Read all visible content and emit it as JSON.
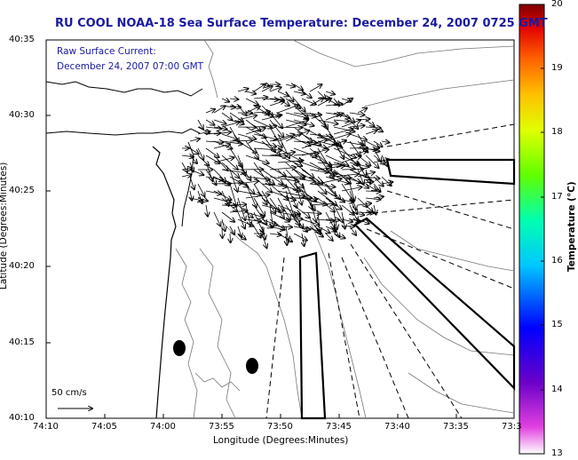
{
  "title": "RU COOL  NOAA-18  Sea Surface Temperature:  December 24, 2007 0725 GMT",
  "legend_note": {
    "line1": "Raw Surface Current:",
    "line2": "December 24, 2007 07:00 GMT"
  },
  "axes": {
    "xlabel": "Longitude (Degrees:Minutes)",
    "ylabel": "Latitude (Degrees:Minutes)",
    "xticks": [
      "74:10",
      "74:05",
      "74:00",
      "73:55",
      "73:50",
      "73:45",
      "73:40",
      "73:35",
      "73:3"
    ],
    "yticks": [
      "40:35",
      "40:30",
      "40:25",
      "40:20",
      "40:15",
      "40:10"
    ]
  },
  "colorbar": {
    "label": "Temperature (°C)",
    "ticks": [
      "20",
      "19",
      "18",
      "17",
      "16",
      "15",
      "14",
      "13"
    ],
    "min": 13,
    "max": 20
  },
  "scale_arrow": {
    "label": "50 cm/s"
  },
  "colors": {
    "title": "#1a1aa0",
    "arrows": "#000000",
    "contours": "#777777"
  }
}
